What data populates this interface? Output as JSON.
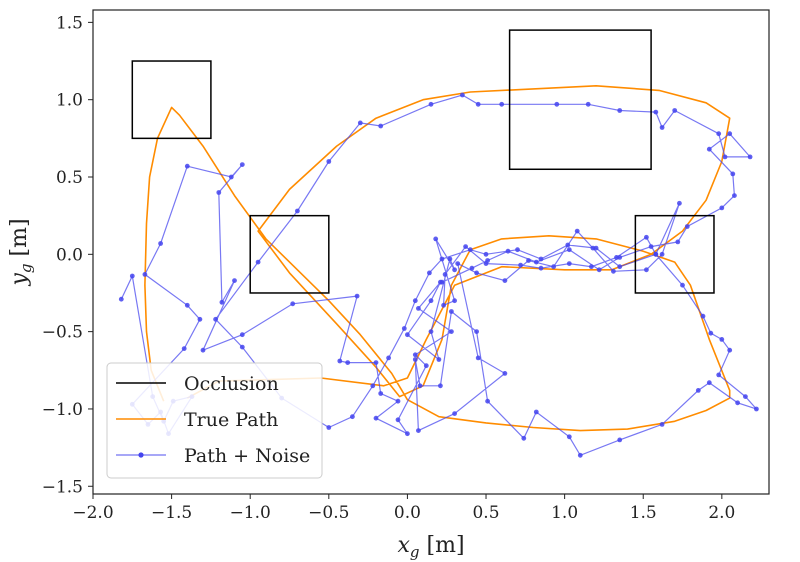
{
  "chart_data": {
    "type": "line",
    "title": "",
    "xlabel": {
      "main": "x",
      "sub": "g",
      "unit": " [m]"
    },
    "ylabel": {
      "main": "y",
      "sub": "g",
      "unit": " [m]"
    },
    "xlim": [
      -2.0,
      2.3
    ],
    "ylim": [
      -1.55,
      1.58
    ],
    "xticks": [
      -2.0,
      -1.5,
      -1.0,
      -0.5,
      0.0,
      0.5,
      1.0,
      1.5,
      2.0
    ],
    "yticks": [
      -1.5,
      -1.0,
      -0.5,
      0.0,
      0.5,
      1.0,
      1.5
    ],
    "grid": false,
    "legend_position": "bottom-left",
    "colors": {
      "occlusion": "#000000",
      "true_path": "#ff8c00",
      "noisy_path": "#4444ee"
    },
    "series": [
      {
        "name": "Occlusion",
        "kind": "rectangles",
        "color": "#000000",
        "rects": [
          {
            "x0": -1.75,
            "x1": -1.25,
            "y0": 0.75,
            "y1": 1.25
          },
          {
            "x0": 0.65,
            "x1": 1.55,
            "y0": 0.55,
            "y1": 1.45
          },
          {
            "x0": -1.0,
            "x1": -0.5,
            "y0": -0.25,
            "y1": 0.25
          },
          {
            "x0": 1.45,
            "x1": 1.95,
            "y0": -0.25,
            "y1": 0.25
          }
        ]
      },
      {
        "name": "True Path",
        "kind": "line",
        "color": "#ff8c00",
        "points": [
          [
            -1.55,
            -0.95
          ],
          [
            -1.63,
            -0.75
          ],
          [
            -1.66,
            -0.5
          ],
          [
            -1.67,
            -0.2
          ],
          [
            -1.66,
            0.2
          ],
          [
            -1.64,
            0.5
          ],
          [
            -1.59,
            0.75
          ],
          [
            -1.5,
            0.95
          ],
          [
            -1.45,
            0.9
          ],
          [
            -1.3,
            0.7
          ],
          [
            -1.1,
            0.38
          ],
          [
            -0.9,
            0.1
          ],
          [
            -0.7,
            -0.1
          ],
          [
            -0.5,
            -0.3
          ],
          [
            -0.3,
            -0.52
          ],
          [
            -0.1,
            -0.77
          ],
          [
            0.0,
            -0.94
          ],
          [
            0.2,
            -1.05
          ],
          [
            0.5,
            -1.09
          ],
          [
            0.8,
            -1.12
          ],
          [
            1.1,
            -1.14
          ],
          [
            1.4,
            -1.13
          ],
          [
            1.7,
            -1.08
          ],
          [
            1.9,
            -1.01
          ],
          [
            2.05,
            -0.93
          ],
          [
            2.05,
            -0.88
          ],
          [
            1.92,
            -0.55
          ],
          [
            1.8,
            -0.2
          ],
          [
            1.7,
            -0.05
          ],
          [
            1.5,
            0.02
          ],
          [
            1.2,
            0.1
          ],
          [
            0.9,
            0.12
          ],
          [
            0.6,
            0.1
          ],
          [
            0.4,
            0.03
          ],
          [
            0.28,
            -0.2
          ],
          [
            0.22,
            -0.55
          ],
          [
            0.1,
            -0.85
          ],
          [
            -0.05,
            -0.92
          ],
          [
            -0.2,
            -0.73
          ],
          [
            -0.45,
            -0.45
          ],
          [
            -0.75,
            -0.12
          ],
          [
            -0.95,
            0.15
          ],
          [
            -0.75,
            0.42
          ],
          [
            -0.45,
            0.7
          ],
          [
            -0.2,
            0.88
          ],
          [
            0.1,
            1.0
          ],
          [
            0.4,
            1.05
          ],
          [
            0.8,
            1.07
          ],
          [
            1.2,
            1.09
          ],
          [
            1.6,
            1.06
          ],
          [
            1.9,
            0.98
          ],
          [
            2.05,
            0.88
          ],
          [
            2.0,
            0.6
          ],
          [
            1.9,
            0.35
          ],
          [
            1.75,
            0.15
          ],
          [
            1.55,
            0.0
          ],
          [
            1.3,
            -0.1
          ],
          [
            1.0,
            -0.1
          ],
          [
            0.6,
            -0.08
          ],
          [
            0.3,
            -0.2
          ],
          [
            0.12,
            -0.55
          ],
          [
            0.0,
            -0.8
          ],
          [
            -0.15,
            -0.85
          ],
          [
            -0.55,
            -0.8
          ],
          [
            -1.2,
            -0.82
          ],
          [
            -1.4,
            -0.93
          ]
        ]
      },
      {
        "name": "Path + Noise",
        "kind": "line-markers",
        "color": "#4444ee",
        "points": [
          [
            -1.82,
            -0.29
          ],
          [
            -1.75,
            -0.14
          ],
          [
            -1.62,
            -0.92
          ],
          [
            -1.55,
            -1.08
          ],
          [
            -1.49,
            -0.95
          ],
          [
            -1.37,
            -0.92
          ],
          [
            -1.52,
            -1.16
          ],
          [
            -1.57,
            -1.02
          ],
          [
            -1.65,
            -1.1
          ],
          [
            -1.75,
            -0.97
          ],
          [
            -1.42,
            -0.61
          ],
          [
            -1.32,
            -0.42
          ],
          [
            -1.4,
            -0.33
          ],
          [
            -1.67,
            -0.13
          ],
          [
            -1.57,
            0.07
          ],
          [
            -1.4,
            0.57
          ],
          [
            -1.12,
            0.5
          ],
          [
            -1.05,
            0.58
          ],
          [
            -1.2,
            0.4
          ],
          [
            -1.18,
            -0.31
          ],
          [
            -1.1,
            -0.17
          ],
          [
            -1.3,
            -0.62
          ],
          [
            -1.05,
            -0.52
          ],
          [
            -0.73,
            -0.32
          ],
          [
            -0.32,
            -0.27
          ],
          [
            -0.43,
            -0.69
          ],
          [
            -0.38,
            -0.7
          ],
          [
            -0.2,
            -0.7
          ],
          [
            -0.17,
            -0.9
          ],
          [
            -0.06,
            -0.95
          ],
          [
            -0.2,
            -1.06
          ],
          [
            0.0,
            -1.16
          ],
          [
            -0.06,
            -1.07
          ],
          [
            0.12,
            -0.72
          ],
          [
            0.05,
            -0.65
          ],
          [
            0.28,
            -0.5
          ],
          [
            0.07,
            -0.35
          ],
          [
            0.21,
            -0.18
          ],
          [
            0.15,
            -0.3
          ],
          [
            0.0,
            -0.52
          ],
          [
            0.2,
            -0.68
          ],
          [
            0.15,
            -0.5
          ],
          [
            0.27,
            -0.03
          ],
          [
            0.3,
            -0.1
          ],
          [
            0.18,
            0.1
          ],
          [
            0.3,
            -0.3
          ],
          [
            0.23,
            -0.33
          ],
          [
            0.24,
            -0.13
          ],
          [
            0.37,
            0.05
          ],
          [
            0.5,
            -0.06
          ],
          [
            0.72,
            -0.07
          ],
          [
            0.85,
            -0.09
          ],
          [
            1.03,
            -0.06
          ],
          [
            1.17,
            -0.08
          ],
          [
            1.33,
            -0.02
          ],
          [
            1.52,
            0.11
          ],
          [
            1.58,
            0.0
          ],
          [
            1.73,
            0.33
          ],
          [
            1.62,
            0.0
          ],
          [
            1.52,
            -0.1
          ],
          [
            1.31,
            -0.11
          ],
          [
            1.18,
            0.04
          ],
          [
            1.08,
            0.15
          ],
          [
            0.93,
            -0.08
          ],
          [
            0.77,
            -0.04
          ],
          [
            0.62,
            -0.17
          ],
          [
            0.44,
            -0.12
          ],
          [
            0.32,
            -0.06
          ],
          [
            0.45,
            -0.67
          ],
          [
            0.62,
            -0.77
          ],
          [
            0.3,
            -1.03
          ],
          [
            0.07,
            -1.14
          ],
          [
            0.05,
            -0.68
          ],
          [
            0.08,
            -0.85
          ],
          [
            0.21,
            -0.85
          ],
          [
            0.28,
            -0.37
          ],
          [
            0.44,
            -0.5
          ],
          [
            0.51,
            -0.95
          ],
          [
            0.74,
            -1.19
          ],
          [
            0.82,
            -1.02
          ],
          [
            1.03,
            -1.18
          ],
          [
            1.1,
            -1.3
          ],
          [
            1.35,
            -1.2
          ],
          [
            1.62,
            -1.1
          ],
          [
            1.85,
            -0.88
          ],
          [
            1.92,
            -0.83
          ],
          [
            2.1,
            -0.96
          ],
          [
            2.22,
            -1.0
          ],
          [
            2.15,
            -0.92
          ],
          [
            1.98,
            -0.78
          ],
          [
            2.05,
            -0.62
          ],
          [
            2.0,
            -0.55
          ],
          [
            1.93,
            -0.51
          ],
          [
            1.88,
            -0.4
          ],
          [
            1.75,
            -0.2
          ],
          [
            1.58,
            0.0
          ],
          [
            1.35,
            -0.08
          ],
          [
            1.2,
            0.04
          ],
          [
            1.02,
            0.06
          ],
          [
            0.85,
            -0.03
          ],
          [
            0.7,
            0.03
          ],
          [
            0.5,
            0.0
          ],
          [
            0.4,
            0.03
          ],
          [
            0.22,
            -0.03
          ],
          [
            0.14,
            -0.12
          ],
          [
            0.05,
            -0.3
          ],
          [
            -0.02,
            -0.48
          ],
          [
            -0.12,
            -0.67
          ],
          [
            -0.22,
            -0.85
          ],
          [
            -0.35,
            -1.05
          ],
          [
            -0.5,
            -1.12
          ],
          [
            -0.8,
            -0.93
          ],
          [
            -1.05,
            -0.6
          ],
          [
            -1.22,
            -0.42
          ],
          [
            -0.95,
            -0.05
          ],
          [
            -0.7,
            0.28
          ],
          [
            -0.5,
            0.6
          ],
          [
            -0.3,
            0.85
          ],
          [
            -0.17,
            0.83
          ],
          [
            0.15,
            0.97
          ],
          [
            0.35,
            1.03
          ],
          [
            0.45,
            0.97
          ],
          [
            0.6,
            0.97
          ],
          [
            0.95,
            0.97
          ],
          [
            1.15,
            0.97
          ],
          [
            1.35,
            0.93
          ],
          [
            1.58,
            0.92
          ],
          [
            1.62,
            0.82
          ],
          [
            1.7,
            0.93
          ],
          [
            1.98,
            0.78
          ],
          [
            2.02,
            0.63
          ],
          [
            2.18,
            0.63
          ],
          [
            2.05,
            0.78
          ],
          [
            1.92,
            0.68
          ],
          [
            2.07,
            0.52
          ],
          [
            2.08,
            0.38
          ],
          [
            2.0,
            0.3
          ],
          [
            1.78,
            0.18
          ],
          [
            1.72,
            0.08
          ],
          [
            1.55,
            0.05
          ],
          [
            1.35,
            -0.02
          ],
          [
            1.22,
            -0.1
          ],
          [
            1.03,
            0.03
          ],
          [
            0.82,
            -0.05
          ],
          [
            0.64,
            0.02
          ],
          [
            0.51,
            -0.04
          ],
          [
            0.41,
            -0.09
          ],
          [
            0.22,
            -0.18
          ]
        ]
      }
    ]
  }
}
